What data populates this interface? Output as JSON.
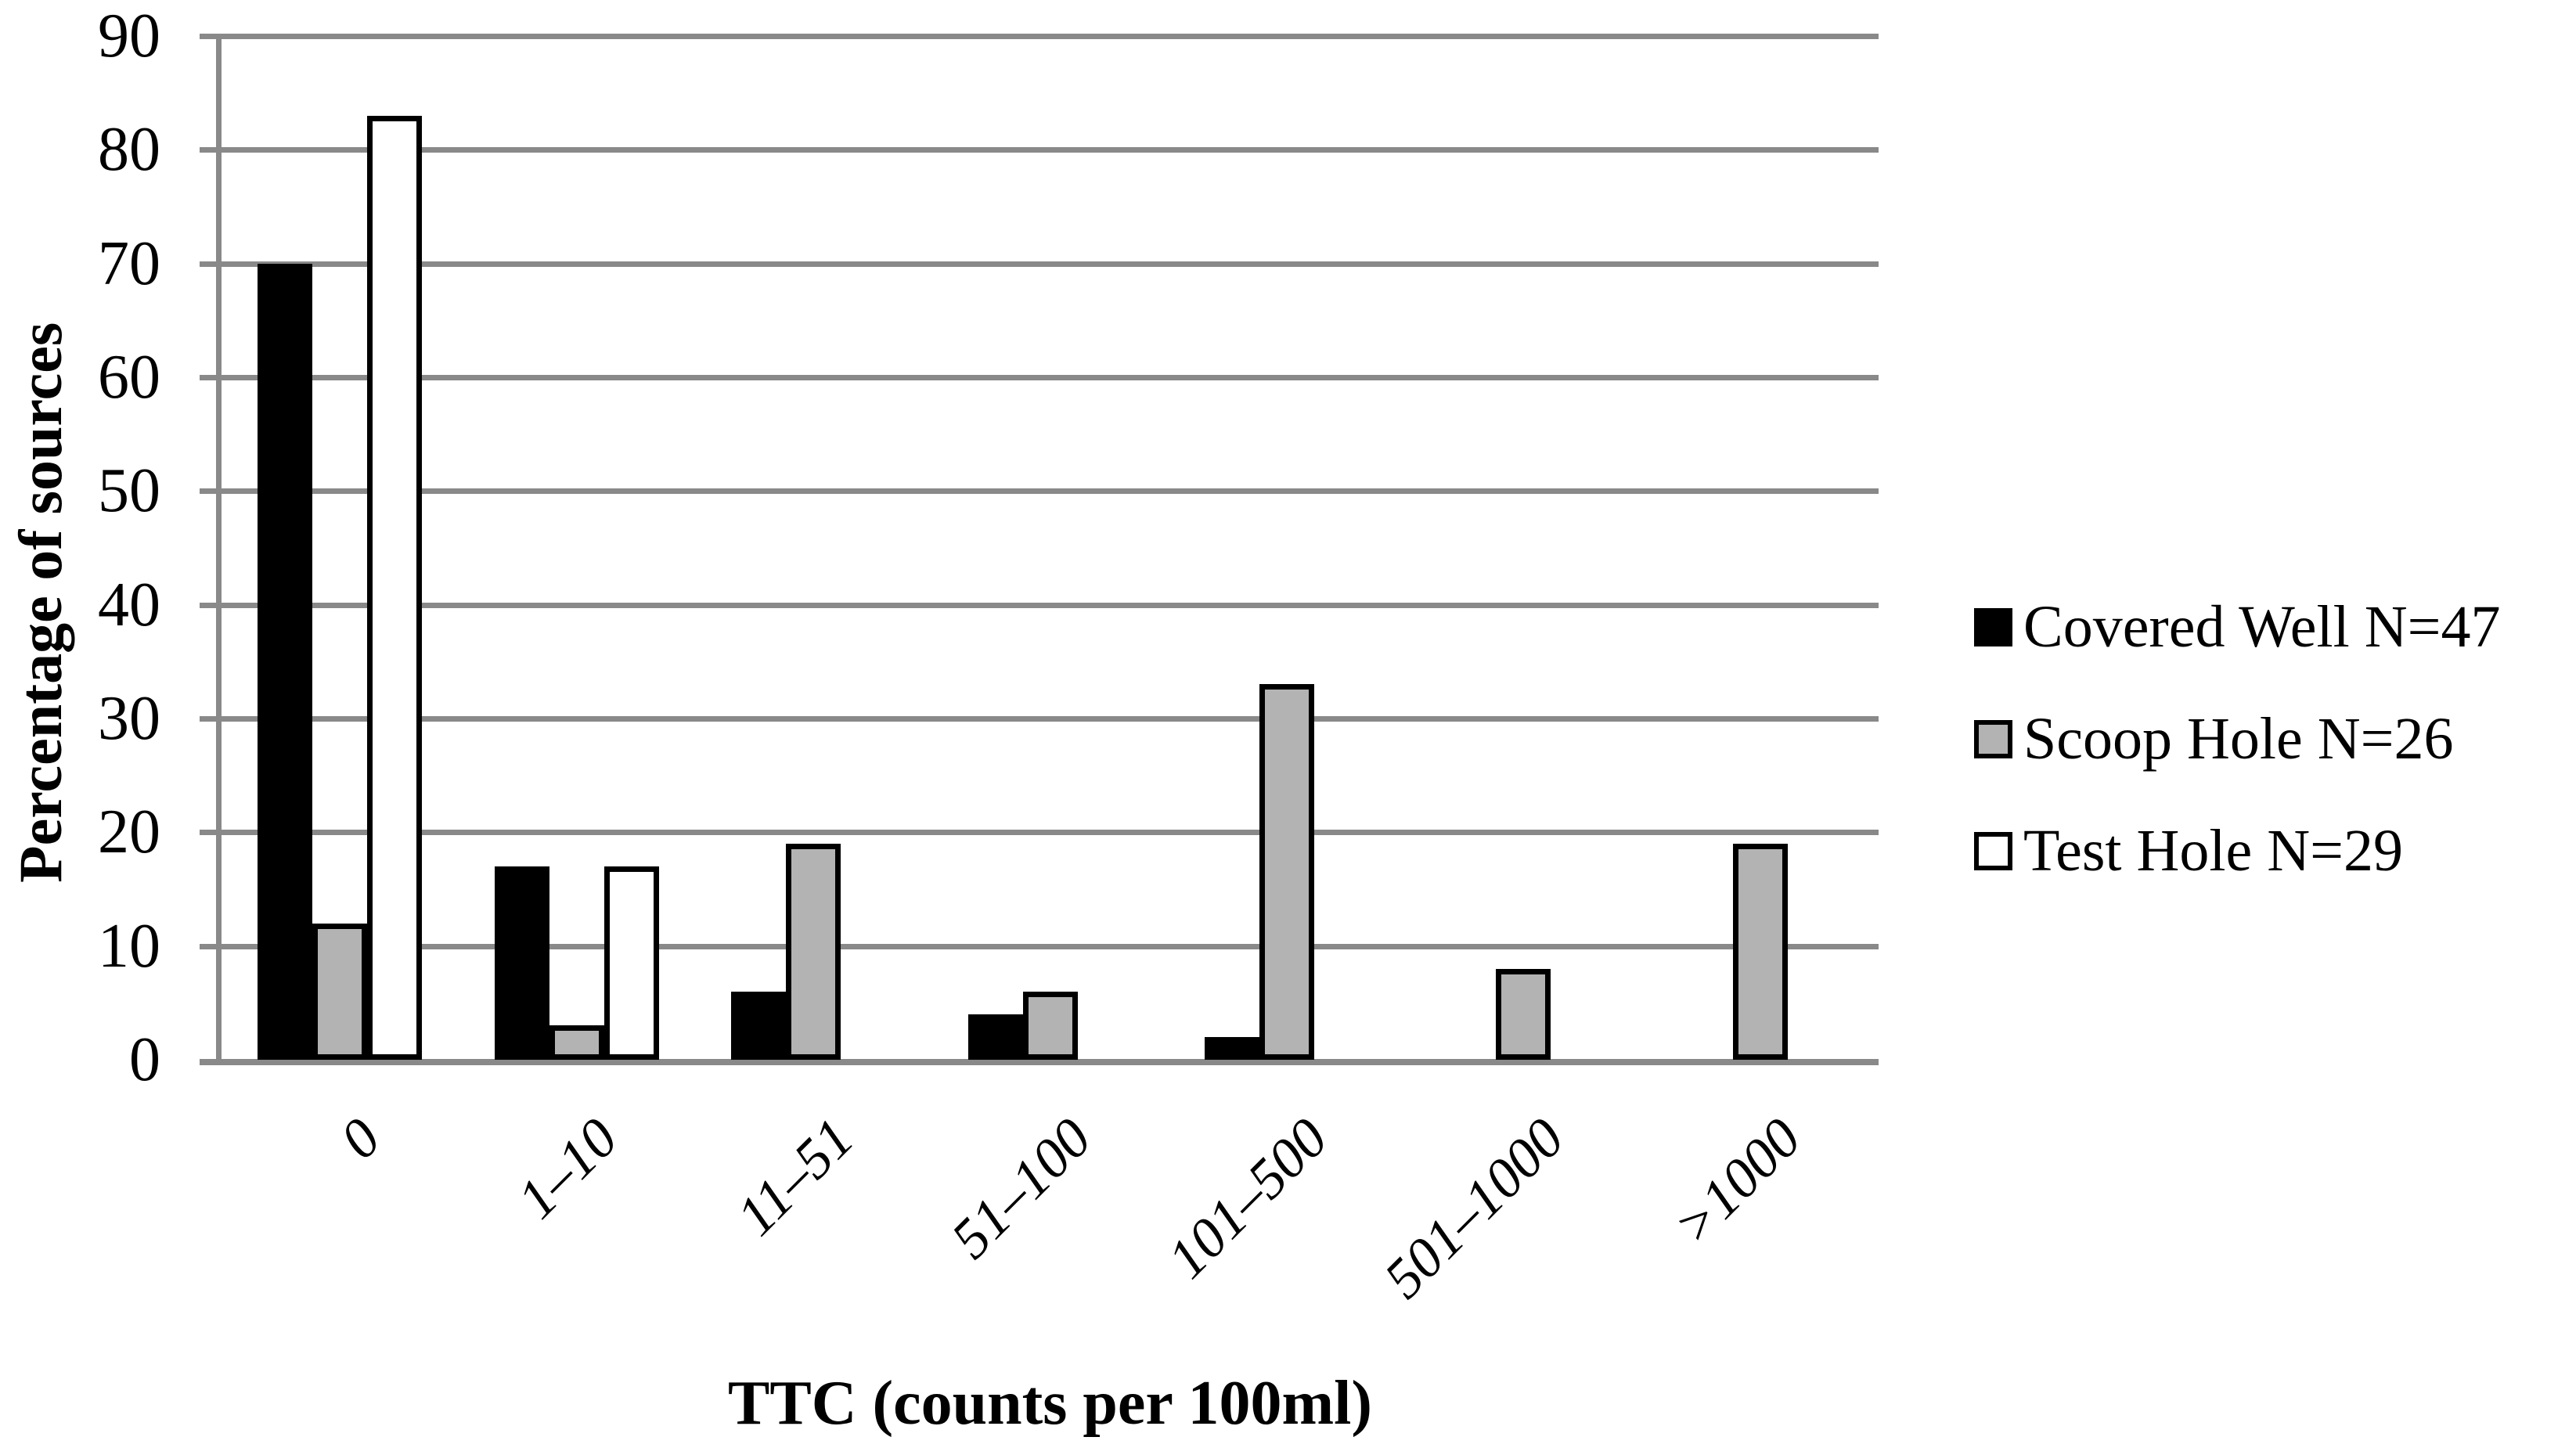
{
  "chart_data": {
    "type": "bar",
    "title": "",
    "xlabel": "TTC (counts per 100ml)",
    "ylabel": "Percentage of sources",
    "categories": [
      "0",
      "1–10",
      "11–51",
      "51–100",
      "101–500",
      "501–1000",
      ">1000"
    ],
    "series": [
      {
        "key": "covered-well",
        "name": "Covered Well N=47",
        "fill": "#000000",
        "outlined": false,
        "values": [
          70,
          17,
          6,
          4,
          2,
          0,
          0
        ]
      },
      {
        "key": "scoop-hole",
        "name": "Scoop Hole N=26",
        "fill": "#b3b3b3",
        "outlined": true,
        "values": [
          12,
          3,
          19,
          6,
          33,
          8,
          19
        ]
      },
      {
        "key": "test-hole",
        "name": "Test Hole N=29",
        "fill": "#ffffff",
        "outlined": true,
        "values": [
          83,
          17,
          0,
          0,
          0,
          0,
          0
        ]
      }
    ],
    "ylim": [
      0,
      90
    ],
    "yticks": [
      0,
      10,
      20,
      30,
      40,
      50,
      60,
      70,
      80,
      90
    ],
    "grid": true,
    "legend_position": "right",
    "colors": {
      "grid": "#898989",
      "axis": "#898989",
      "bar_outline": "#000000",
      "background": "#ffffff"
    }
  }
}
